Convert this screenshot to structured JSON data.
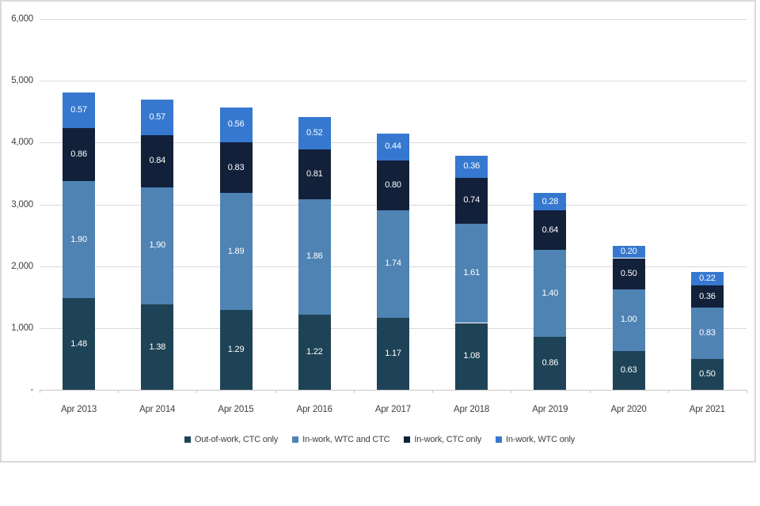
{
  "chart_data": {
    "type": "bar",
    "stacked": true,
    "title": "",
    "xlabel": "",
    "ylabel": "",
    "ylim": [
      0,
      6000
    ],
    "grid": true,
    "legend_position": "bottom",
    "categories": [
      "Apr 2013",
      "Apr 2014",
      "Apr 2015",
      "Apr 2016",
      "Apr 2017",
      "Apr 2018",
      "Apr 2019",
      "Apr 2020",
      "Apr 2021"
    ],
    "y_ticks": [
      {
        "label": "-",
        "value": 0
      },
      {
        "label": "1,000",
        "value": 1000
      },
      {
        "label": "2,000",
        "value": 2000
      },
      {
        "label": "3,000",
        "value": 3000
      },
      {
        "label": "4,000",
        "value": 4000
      },
      {
        "label": "5,000",
        "value": 5000
      },
      {
        "label": "6,000",
        "value": 6000
      }
    ],
    "axis_unit": "thousands",
    "value_unit": "millions",
    "value_to_axis_factor": 1000,
    "series": [
      {
        "name": "Out-of-work, CTC only",
        "color": "#1e4356",
        "values": [
          1.48,
          1.38,
          1.29,
          1.22,
          1.17,
          1.08,
          0.86,
          0.63,
          0.5
        ],
        "labels": [
          "1.48",
          "1.38",
          "1.29",
          "1.22",
          "1.17",
          "1.08",
          "0.86",
          "0.63",
          "0.50"
        ]
      },
      {
        "name": "In-work, WTC and CTC",
        "color": "#4f83b3",
        "values": [
          1.9,
          1.9,
          1.89,
          1.86,
          1.74,
          1.61,
          1.4,
          1.0,
          0.83
        ],
        "labels": [
          "1.90",
          "1,90",
          "1.89",
          "1.86",
          "1.74",
          "1.61",
          "1.40",
          "1.00",
          "0.83"
        ]
      },
      {
        "name": "In-work, CTC only",
        "color": "#12203a",
        "values": [
          0.86,
          0.84,
          0.83,
          0.81,
          0.8,
          0.74,
          0.64,
          0.5,
          0.36
        ],
        "labels": [
          "0.86",
          "0.84",
          "0.83",
          "0.81",
          "0.80",
          "0.74",
          "0.64",
          "0.50",
          "0.36"
        ]
      },
      {
        "name": "In-work, WTC only",
        "color": "#3678cf",
        "values": [
          0.57,
          0.57,
          0.56,
          0.52,
          0.44,
          0.36,
          0.28,
          0.2,
          0.22
        ],
        "labels": [
          "0.57",
          "0.57",
          "0.56",
          "0.52",
          "0.44",
          "0.36",
          "0.28",
          "0.20",
          "0.22"
        ]
      }
    ],
    "colors": {
      "gridline": "#d9d9d9",
      "axis_line": "#c6c6c6",
      "frame_border": "#d9d9d9",
      "tick_label": "#404040",
      "bar_label": "#ffffff",
      "legend_text": "#3f3f3f"
    }
  }
}
